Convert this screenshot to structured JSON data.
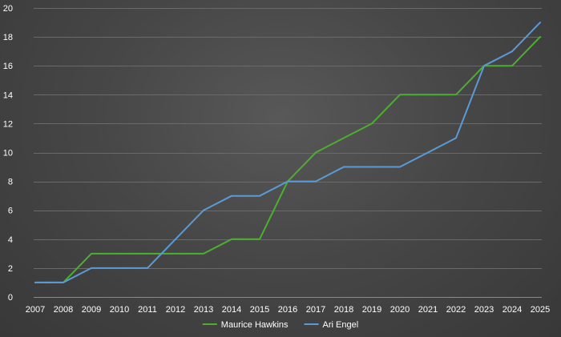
{
  "chart_data": {
    "type": "line",
    "title": "",
    "xlabel": "",
    "ylabel": "",
    "ylim": [
      0,
      20
    ],
    "y_ticks": [
      "0",
      "2",
      "4",
      "6",
      "8",
      "10",
      "12",
      "14",
      "16",
      "18",
      "20"
    ],
    "grid": true,
    "legend_position": "bottom",
    "categories": [
      "2007",
      "2008",
      "2009",
      "2010",
      "2011",
      "2012",
      "2013",
      "2014",
      "2015",
      "2016",
      "2017",
      "2018",
      "2019",
      "2020",
      "2021",
      "2022",
      "2023",
      "2024",
      "2025"
    ],
    "series": [
      {
        "name": "Maurice Hawkins",
        "color": "#4caf2f",
        "values": [
          1,
          1,
          3,
          3,
          3,
          3,
          3,
          4,
          4,
          8,
          10,
          11,
          12,
          14,
          14,
          14,
          16,
          16,
          18
        ]
      },
      {
        "name": "Ari Engel",
        "color": "#5b9bd5",
        "values": [
          1,
          1,
          2,
          2,
          2,
          4,
          6,
          7,
          7,
          8,
          8,
          9,
          9,
          9,
          10,
          11,
          16,
          17,
          19
        ]
      }
    ]
  }
}
